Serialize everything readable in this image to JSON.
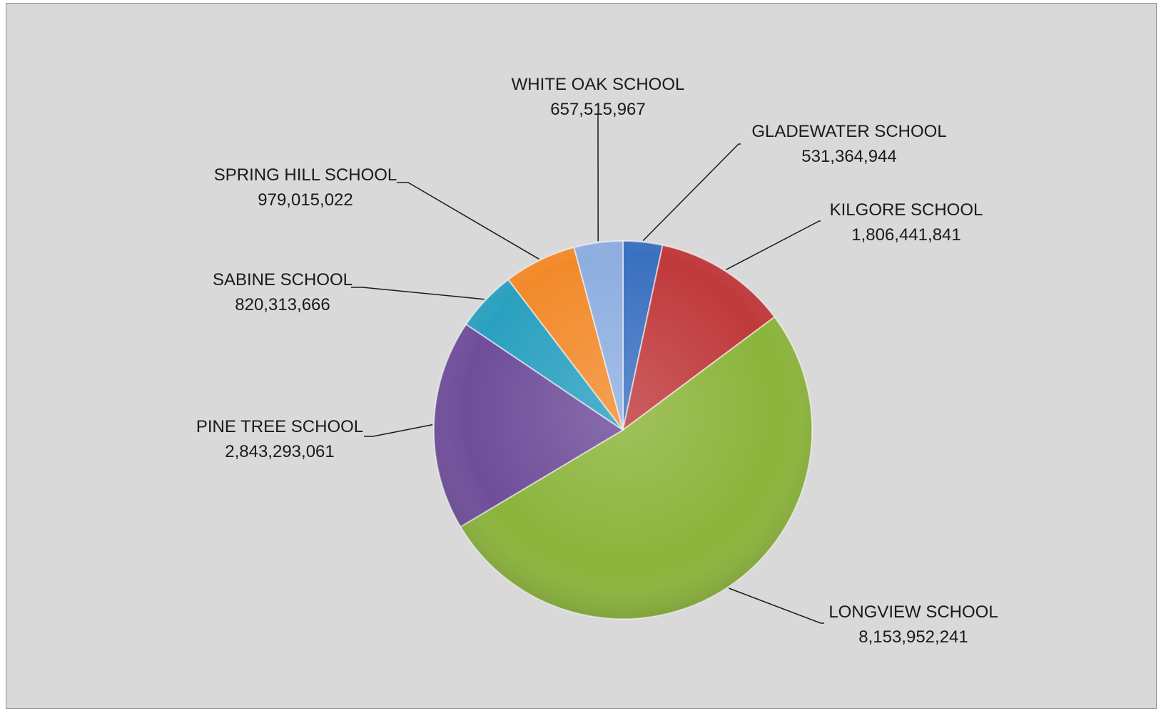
{
  "chart_data": {
    "type": "pie",
    "title": "",
    "legend": "none",
    "slices": [
      {
        "label": "GLADEWATER SCHOOL",
        "value": 531364944,
        "value_text": "531,364,944",
        "color": "#3a70c0"
      },
      {
        "label": "KILGORE SCHOOL",
        "value": 1806441841,
        "value_text": "1,806,441,841",
        "color": "#c0393b"
      },
      {
        "label": "LONGVIEW SCHOOL",
        "value": 8153952241,
        "value_text": "8,153,952,241",
        "color": "#8bb43a"
      },
      {
        "label": "PINE TREE SCHOOL",
        "value": 2843293061,
        "value_text": "2,843,293,061",
        "color": "#6f4d9a"
      },
      {
        "label": "SABINE SCHOOL",
        "value": 820313666,
        "value_text": "820,313,666",
        "color": "#2aa0c0"
      },
      {
        "label": "SPRING HILL SCHOOL",
        "value": 979015022,
        "value_text": "979,015,022",
        "color": "#f28a2a"
      },
      {
        "label": "WHITE OAK SCHOOL",
        "value": 657515967,
        "value_text": "657,515,967",
        "color": "#8eaee0"
      }
    ]
  }
}
